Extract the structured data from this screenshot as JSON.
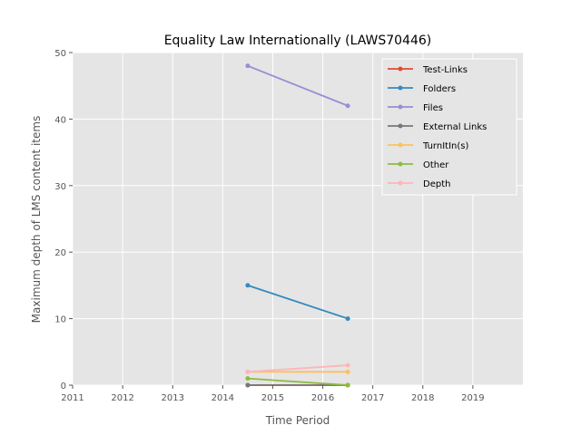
{
  "chart_data": {
    "type": "line",
    "title": "Equality Law Internationally (LAWS70446)",
    "xlabel": "Time Period",
    "ylabel": "Maximum depth of LMS content items",
    "xlim": [
      2011,
      2020
    ],
    "ylim": [
      0,
      50
    ],
    "xticks": [
      2011,
      2012,
      2013,
      2014,
      2015,
      2016,
      2017,
      2018,
      2019
    ],
    "yticks": [
      0,
      10,
      20,
      30,
      40,
      50
    ],
    "x": [
      2014.5,
      2016.5
    ],
    "grid": true,
    "legend_position": "top-right",
    "series": [
      {
        "name": "Test-Links",
        "color": "#E24A33",
        "values": [
          0,
          0
        ]
      },
      {
        "name": "Folders",
        "color": "#348ABD",
        "values": [
          15,
          10
        ]
      },
      {
        "name": "Files",
        "color": "#988ED5",
        "values": [
          48,
          42
        ]
      },
      {
        "name": "External Links",
        "color": "#777777",
        "values": [
          0,
          0
        ]
      },
      {
        "name": "TurnItIn(s)",
        "color": "#FBC15E",
        "values": [
          2,
          2
        ]
      },
      {
        "name": "Other",
        "color": "#8EBA42",
        "values": [
          1,
          0
        ]
      },
      {
        "name": "Depth",
        "color": "#FFB5B8",
        "values": [
          2,
          3
        ]
      }
    ]
  }
}
